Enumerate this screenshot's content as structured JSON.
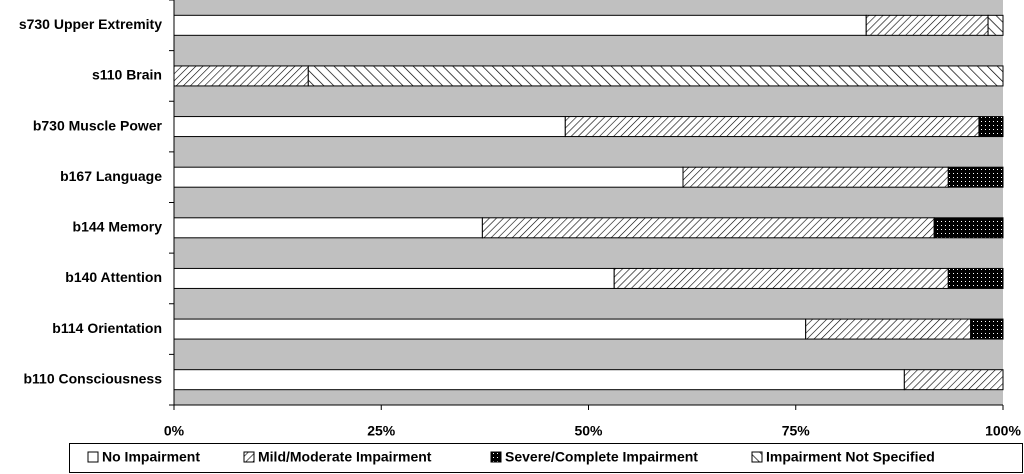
{
  "chart_data": {
    "type": "stacked-barh",
    "categories": [
      "s730 Upper Extremity",
      "s110 Brain",
      "b730 Muscle Power",
      "b167 Language",
      "b144 Memory",
      "b140 Attention",
      "b114 Orientation",
      "b110 Consciousness"
    ],
    "series": [
      {
        "name": "No Impairment",
        "color": "#ffffff",
        "pattern": "none",
        "values": [
          83.5,
          0,
          47.2,
          61.4,
          37.2,
          53.1,
          76.2,
          88.1
        ]
      },
      {
        "name": "Mild/Moderate Impairment",
        "color": "#ffffff",
        "pattern": "back-hatch",
        "values": [
          14.7,
          16.2,
          49.9,
          32.0,
          54.5,
          40.3,
          19.9,
          11.9
        ]
      },
      {
        "name": "Severe/Complete Impairment",
        "color": "#000000",
        "pattern": "dots",
        "values": [
          0,
          0,
          2.9,
          6.6,
          8.3,
          6.6,
          3.9,
          0
        ]
      },
      {
        "name": "Impairment Not Specified",
        "color": "#ffffff",
        "pattern": "forward-hatch",
        "values": [
          1.8,
          83.8,
          0,
          0,
          0,
          0,
          0,
          0
        ]
      }
    ],
    "xlim": [
      0,
      100
    ],
    "xticks": [
      {
        "value": 0,
        "label": "0%"
      },
      {
        "value": 25,
        "label": "25%"
      },
      {
        "value": 50,
        "label": "50%"
      },
      {
        "value": 75,
        "label": "75%"
      },
      {
        "value": 100,
        "label": "100%"
      }
    ],
    "plot_background": "#c0c0c0",
    "legend": "bottom"
  }
}
